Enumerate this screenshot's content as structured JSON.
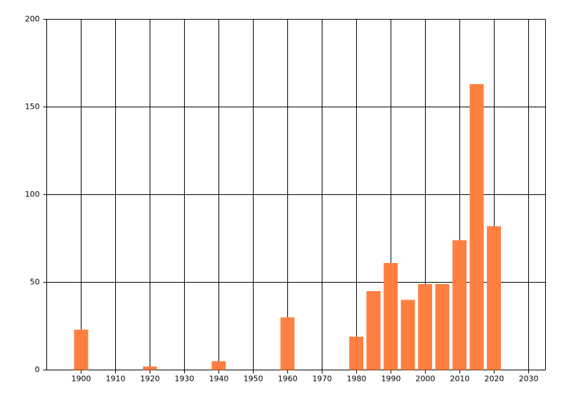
{
  "chart_data": {
    "type": "bar",
    "x": [
      1900,
      1920,
      1940,
      1960,
      1980,
      1985,
      1990,
      1995,
      2000,
      2005,
      2010,
      2015,
      2020
    ],
    "values": [
      23,
      2,
      5,
      30,
      19,
      45,
      61,
      40,
      49,
      49,
      74,
      163,
      82
    ],
    "color": "#ff7f40",
    "xlim": [
      1890,
      2035
    ],
    "xticks": [
      1900,
      1910,
      1920,
      1930,
      1940,
      1950,
      1960,
      1970,
      1980,
      1990,
      2000,
      2010,
      2020,
      2030
    ],
    "ylim": [
      0,
      200
    ],
    "yticks": [
      0,
      50,
      100,
      150,
      200
    ],
    "grid": true
  }
}
